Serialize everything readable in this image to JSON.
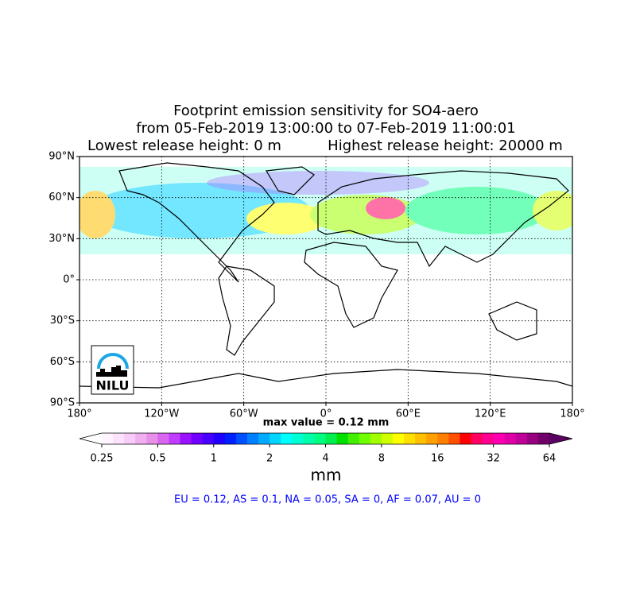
{
  "map": {
    "title": [
      "Footprint emission sensitivity for SO4-aero",
      "from 05-Feb-2019 13:00:00 to 07-Feb-2019 11:00:01"
    ],
    "release_heights": [
      "Lowest release height: 0 m",
      "Highest release height: 20000 m"
    ],
    "xlim": [
      -180,
      180
    ],
    "ylim": [
      -90,
      90
    ],
    "xticks": [
      {
        "value": -180,
        "label": "180°"
      },
      {
        "value": -120,
        "label": "120°W"
      },
      {
        "value": -60,
        "label": "60°W"
      },
      {
        "value": 0,
        "label": "0°"
      },
      {
        "value": 60,
        "label": "60°E"
      },
      {
        "value": 120,
        "label": "120°E"
      },
      {
        "value": 180,
        "label": "180°"
      }
    ],
    "yticks": [
      {
        "value": -90,
        "label": "90°S"
      },
      {
        "value": -60,
        "label": "60°S"
      },
      {
        "value": -30,
        "label": "30°S"
      },
      {
        "value": 0,
        "label": "0°"
      },
      {
        "value": 30,
        "label": "30°N"
      },
      {
        "value": 60,
        "label": "60°N"
      },
      {
        "value": 90,
        "label": "90°N"
      }
    ],
    "grid": true,
    "max_value": "max value = 0.12 mm",
    "logo": "NILU",
    "colorbar": {
      "scale": "log",
      "lim": [
        0.25,
        64
      ],
      "ticks": [
        0.25,
        0.5,
        1,
        2,
        4,
        8,
        16,
        32,
        64
      ],
      "label": "mm",
      "under_color": "#ffffff",
      "over_color": "#5a0060",
      "colors": [
        "#fff4ff",
        "#fde2fd",
        "#f8ccf8",
        "#f0b0f0",
        "#e890e8",
        "#d866f0",
        "#c03cff",
        "#9a10ff",
        "#7000ff",
        "#4800ff",
        "#2000ff",
        "#0020ff",
        "#0050ff",
        "#0080ff",
        "#00aaff",
        "#00d4ff",
        "#00ffff",
        "#00ffd4",
        "#00ffaa",
        "#00ff80",
        "#00f050",
        "#00e000",
        "#40f000",
        "#70ff00",
        "#a0ff00",
        "#d0ff00",
        "#ffff00",
        "#ffe000",
        "#ffc000",
        "#ffa000",
        "#ff8000",
        "#ff5000",
        "#ff0000",
        "#ff0060",
        "#ff0090",
        "#ff00b0",
        "#e000a8",
        "#c00098",
        "#980080",
        "#700068"
      ]
    },
    "regions": "EU = 0.12,  AS = 0.1,  NA = 0.05,  SA = 0,  AF = 0.07,  AU = 0"
  }
}
